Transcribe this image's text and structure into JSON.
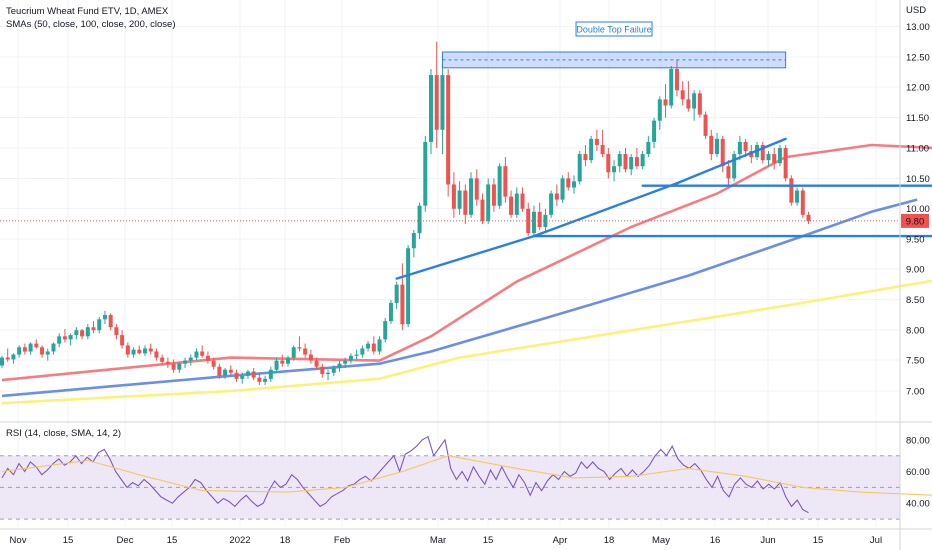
{
  "header": {
    "symbol_line": "Teucrium Wheat Fund ETV, 1D, AMEX",
    "sma_line": "SMAs (50, close, 100, close, 200, close)",
    "rsi_line": "RSI (14, close, SMA, 14, 2)"
  },
  "colors": {
    "up": "#26a69a",
    "down": "#ef5350",
    "sma50": "#f77c80",
    "sma100": "#6a8fe6",
    "sma200": "#fbf27a",
    "trendline": "#2a7fe0",
    "rsi_line": "#7e57c2",
    "rsi_signal": "#f6c85f",
    "rsi_band": "#ede7f6"
  },
  "chart_data": [
    {
      "type": "candlestick",
      "title": "Teucrium Wheat Fund ETV, 1D, AMEX",
      "y_unit": "USD",
      "ylim": [
        6.55,
        13.3
      ],
      "y_ticks": [
        "13.00",
        "12.50",
        "12.00",
        "11.50",
        "11.00",
        "10.50",
        "10.00",
        "9.50",
        "9.00",
        "8.50",
        "8.00",
        "7.50",
        "7.00"
      ],
      "x_ticks": [
        "Nov",
        "15",
        "Dec",
        "15",
        "2022",
        "18",
        "Feb",
        "Mar",
        "15",
        "Apr",
        "18",
        "May",
        "16",
        "Jun",
        "15",
        "Jul"
      ],
      "last_price": "9.80",
      "annotation": "Double Top Failure",
      "candles": [
        [
          7.42,
          7.58,
          7.38,
          7.55
        ],
        [
          7.55,
          7.7,
          7.48,
          7.52
        ],
        [
          7.52,
          7.62,
          7.45,
          7.6
        ],
        [
          7.6,
          7.75,
          7.55,
          7.72
        ],
        [
          7.72,
          7.78,
          7.6,
          7.65
        ],
        [
          7.65,
          7.8,
          7.6,
          7.78
        ],
        [
          7.78,
          7.85,
          7.7,
          7.72
        ],
        [
          7.72,
          7.75,
          7.55,
          7.6
        ],
        [
          7.6,
          7.7,
          7.5,
          7.65
        ],
        [
          7.65,
          7.8,
          7.6,
          7.78
        ],
        [
          7.78,
          7.95,
          7.72,
          7.9
        ],
        [
          7.9,
          8.02,
          7.8,
          7.85
        ],
        [
          7.85,
          7.95,
          7.75,
          7.92
        ],
        [
          7.92,
          8.05,
          7.85,
          8.0
        ],
        [
          8.0,
          8.02,
          7.85,
          7.9
        ],
        [
          7.9,
          8.1,
          7.85,
          8.05
        ],
        [
          8.05,
          8.15,
          7.95,
          8.0
        ],
        [
          8.0,
          8.22,
          7.95,
          8.18
        ],
        [
          8.18,
          8.32,
          8.1,
          8.25
        ],
        [
          8.25,
          8.28,
          8.0,
          8.05
        ],
        [
          8.05,
          8.1,
          7.85,
          7.92
        ],
        [
          7.92,
          8.0,
          7.7,
          7.75
        ],
        [
          7.75,
          7.8,
          7.55,
          7.6
        ],
        [
          7.6,
          7.72,
          7.55,
          7.68
        ],
        [
          7.68,
          7.75,
          7.6,
          7.62
        ],
        [
          7.62,
          7.75,
          7.58,
          7.7
        ],
        [
          7.7,
          7.78,
          7.6,
          7.65
        ],
        [
          7.65,
          7.7,
          7.5,
          7.55
        ],
        [
          7.55,
          7.6,
          7.42,
          7.48
        ],
        [
          7.48,
          7.55,
          7.38,
          7.45
        ],
        [
          7.45,
          7.52,
          7.3,
          7.35
        ],
        [
          7.35,
          7.48,
          7.3,
          7.45
        ],
        [
          7.45,
          7.55,
          7.38,
          7.5
        ],
        [
          7.5,
          7.6,
          7.42,
          7.55
        ],
        [
          7.55,
          7.7,
          7.5,
          7.65
        ],
        [
          7.65,
          7.75,
          7.55,
          7.58
        ],
        [
          7.58,
          7.65,
          7.45,
          7.5
        ],
        [
          7.5,
          7.55,
          7.35,
          7.4
        ],
        [
          7.4,
          7.45,
          7.2,
          7.25
        ],
        [
          7.25,
          7.38,
          7.2,
          7.35
        ],
        [
          7.35,
          7.42,
          7.25,
          7.3
        ],
        [
          7.3,
          7.35,
          7.15,
          7.2
        ],
        [
          7.2,
          7.3,
          7.12,
          7.25
        ],
        [
          7.25,
          7.35,
          7.2,
          7.32
        ],
        [
          7.32,
          7.38,
          7.18,
          7.22
        ],
        [
          7.22,
          7.3,
          7.1,
          7.15
        ],
        [
          7.15,
          7.25,
          7.1,
          7.2
        ],
        [
          7.2,
          7.4,
          7.15,
          7.35
        ],
        [
          7.35,
          7.55,
          7.3,
          7.5
        ],
        [
          7.5,
          7.6,
          7.4,
          7.45
        ],
        [
          7.45,
          7.58,
          7.4,
          7.55
        ],
        [
          7.55,
          7.75,
          7.5,
          7.72
        ],
        [
          7.72,
          7.9,
          7.65,
          7.7
        ],
        [
          7.7,
          7.78,
          7.55,
          7.6
        ],
        [
          7.6,
          7.68,
          7.45,
          7.5
        ],
        [
          7.5,
          7.55,
          7.35,
          7.4
        ],
        [
          7.4,
          7.45,
          7.22,
          7.28
        ],
        [
          7.28,
          7.35,
          7.18,
          7.3
        ],
        [
          7.3,
          7.42,
          7.25,
          7.38
        ],
        [
          7.38,
          7.5,
          7.32,
          7.45
        ],
        [
          7.45,
          7.55,
          7.38,
          7.5
        ],
        [
          7.5,
          7.62,
          7.45,
          7.58
        ],
        [
          7.58,
          7.68,
          7.5,
          7.6
        ],
        [
          7.6,
          7.75,
          7.55,
          7.7
        ],
        [
          7.7,
          7.82,
          7.65,
          7.78
        ],
        [
          7.78,
          7.9,
          7.6,
          7.65
        ],
        [
          7.65,
          7.9,
          7.6,
          7.85
        ],
        [
          7.85,
          8.2,
          7.8,
          8.15
        ],
        [
          8.15,
          8.5,
          8.1,
          8.45
        ],
        [
          8.45,
          8.8,
          8.35,
          8.75
        ],
        [
          8.75,
          9.1,
          8.0,
          8.1
        ],
        [
          8.1,
          9.4,
          8.05,
          9.35
        ],
        [
          9.35,
          9.65,
          9.2,
          9.6
        ],
        [
          9.6,
          10.1,
          9.5,
          10.05
        ],
        [
          10.05,
          11.2,
          9.95,
          11.1
        ],
        [
          11.1,
          12.3,
          10.9,
          12.2
        ],
        [
          12.2,
          12.75,
          11.0,
          11.3
        ],
        [
          11.3,
          12.4,
          10.9,
          12.2
        ],
        [
          12.2,
          12.3,
          10.2,
          10.4
        ],
        [
          10.4,
          10.6,
          9.85,
          10.0
        ],
        [
          10.0,
          10.45,
          9.9,
          10.3
        ],
        [
          10.3,
          10.4,
          9.75,
          9.9
        ],
        [
          9.9,
          10.6,
          9.85,
          10.5
        ],
        [
          10.5,
          10.65,
          10.05,
          10.15
        ],
        [
          10.15,
          10.25,
          9.75,
          9.8
        ],
        [
          9.8,
          10.5,
          9.75,
          10.4
        ],
        [
          10.4,
          10.5,
          9.95,
          10.05
        ],
        [
          10.05,
          10.75,
          10.0,
          10.7
        ],
        [
          10.7,
          10.85,
          10.1,
          10.2
        ],
        [
          10.2,
          10.3,
          9.85,
          9.9
        ],
        [
          9.9,
          10.35,
          9.85,
          10.25
        ],
        [
          10.25,
          10.35,
          9.95,
          10.0
        ],
        [
          10.0,
          10.1,
          9.55,
          9.6
        ],
        [
          9.6,
          10.05,
          9.55,
          9.95
        ],
        [
          9.95,
          10.1,
          9.65,
          9.7
        ],
        [
          9.7,
          10.0,
          9.6,
          9.9
        ],
        [
          9.9,
          10.3,
          9.85,
          10.25
        ],
        [
          10.25,
          10.4,
          10.05,
          10.15
        ],
        [
          10.15,
          10.55,
          10.1,
          10.5
        ],
        [
          10.5,
          10.6,
          10.3,
          10.35
        ],
        [
          10.35,
          10.55,
          10.25,
          10.45
        ],
        [
          10.45,
          10.95,
          10.4,
          10.9
        ],
        [
          10.9,
          11.05,
          10.7,
          10.8
        ],
        [
          10.8,
          11.2,
          10.75,
          11.15
        ],
        [
          11.15,
          11.3,
          10.95,
          11.05
        ],
        [
          11.05,
          11.3,
          10.85,
          10.9
        ],
        [
          10.9,
          11.0,
          10.5,
          10.6
        ],
        [
          10.6,
          10.8,
          10.45,
          10.7
        ],
        [
          10.7,
          10.95,
          10.6,
          10.9
        ],
        [
          10.9,
          11.0,
          10.6,
          10.65
        ],
        [
          10.65,
          10.9,
          10.55,
          10.85
        ],
        [
          10.85,
          11.0,
          10.65,
          10.7
        ],
        [
          10.7,
          10.95,
          10.65,
          10.9
        ],
        [
          10.9,
          11.2,
          10.85,
          11.1
        ],
        [
          11.1,
          11.5,
          11.0,
          11.45
        ],
        [
          11.45,
          11.85,
          11.3,
          11.8
        ],
        [
          11.8,
          12.05,
          11.5,
          11.7
        ],
        [
          11.7,
          12.35,
          11.65,
          12.3
        ],
        [
          12.3,
          12.45,
          11.85,
          11.95
        ],
        [
          11.95,
          12.1,
          11.7,
          11.8
        ],
        [
          11.8,
          12.1,
          11.6,
          11.65
        ],
        [
          11.65,
          11.95,
          11.45,
          11.9
        ],
        [
          11.9,
          11.95,
          11.5,
          11.55
        ],
        [
          11.55,
          11.6,
          11.15,
          11.2
        ],
        [
          11.2,
          11.3,
          10.8,
          10.9
        ],
        [
          10.9,
          11.25,
          10.85,
          11.15
        ],
        [
          11.15,
          11.2,
          10.6,
          10.7
        ],
        [
          10.7,
          10.8,
          10.35,
          10.5
        ],
        [
          10.5,
          10.95,
          10.45,
          10.9
        ],
        [
          10.9,
          11.2,
          10.8,
          11.1
        ],
        [
          11.1,
          11.15,
          10.85,
          10.95
        ],
        [
          10.95,
          11.05,
          10.75,
          10.85
        ],
        [
          10.85,
          11.1,
          10.8,
          11.05
        ],
        [
          11.05,
          11.1,
          10.75,
          10.8
        ],
        [
          10.8,
          10.95,
          10.7,
          10.9
        ],
        [
          10.9,
          11.0,
          10.65,
          10.75
        ],
        [
          10.75,
          11.05,
          10.7,
          11.0
        ],
        [
          11.0,
          11.05,
          10.45,
          10.5
        ],
        [
          10.5,
          10.55,
          10.05,
          10.1
        ],
        [
          10.1,
          10.35,
          10.05,
          10.3
        ],
        [
          10.3,
          10.35,
          9.85,
          9.9
        ],
        [
          9.9,
          9.95,
          9.75,
          9.8
        ]
      ],
      "series": [
        {
          "name": "SMA 50",
          "values": [
            [
              0,
              7.18
            ],
            [
              40,
              7.55
            ],
            [
              66,
              7.5
            ],
            [
              75,
              7.9
            ],
            [
              90,
              8.8
            ],
            [
              110,
              9.7
            ],
            [
              125,
              10.25
            ],
            [
              137,
              10.85
            ],
            [
              152,
              11.05
            ],
            [
              163,
              11.0
            ]
          ]
        },
        {
          "name": "SMA 100",
          "values": [
            [
              0,
              6.92
            ],
            [
              40,
              7.25
            ],
            [
              66,
              7.45
            ],
            [
              75,
              7.65
            ],
            [
              95,
              8.2
            ],
            [
              120,
              8.9
            ],
            [
              140,
              9.55
            ],
            [
              152,
              9.95
            ],
            [
              160,
              10.15
            ]
          ]
        },
        {
          "name": "SMA 200",
          "values": [
            [
              0,
              6.8
            ],
            [
              40,
              7.0
            ],
            [
              66,
              7.2
            ],
            [
              80,
              7.55
            ],
            [
              110,
              8.0
            ],
            [
              140,
              8.45
            ],
            [
              163,
              8.82
            ]
          ]
        }
      ],
      "trendlines": [
        {
          "from": [
            69,
            8.85
          ],
          "to": [
            93,
            9.55
          ]
        },
        {
          "from": [
            93,
            9.55
          ],
          "to": [
            118,
            10.42
          ]
        },
        {
          "from": [
            118,
            10.42
          ],
          "to": [
            137,
            11.15
          ]
        },
        {
          "from": [
            93,
            9.55
          ],
          "to": [
            168,
            9.55
          ]
        },
        {
          "from": [
            112,
            10.38
          ],
          "to": [
            175,
            10.38
          ]
        }
      ],
      "resistance_zone": {
        "from": [
          77,
          12.58
        ],
        "to": [
          137,
          12.32
        ]
      }
    },
    {
      "type": "line",
      "title": "RSI (14, close, SMA, 14, 2)",
      "ylim": [
        25,
        90
      ],
      "y_ticks": [
        "80.00",
        "60.00",
        "40.00"
      ],
      "bands": [
        30,
        50,
        70
      ],
      "series": [
        {
          "name": "RSI",
          "values": [
            56,
            62,
            58,
            65,
            60,
            66,
            63,
            58,
            61,
            65,
            68,
            64,
            66,
            70,
            65,
            69,
            66,
            72,
            74,
            68,
            60,
            55,
            50,
            53,
            51,
            55,
            52,
            48,
            44,
            42,
            40,
            44,
            47,
            50,
            55,
            53,
            48,
            44,
            40,
            43,
            41,
            38,
            42,
            45,
            41,
            38,
            40,
            48,
            54,
            50,
            52,
            58,
            55,
            50,
            46,
            42,
            38,
            40,
            44,
            46,
            48,
            51,
            52,
            55,
            57,
            54,
            58,
            62,
            66,
            70,
            60,
            71,
            73,
            76,
            80,
            82,
            70,
            75,
            80,
            62,
            55,
            60,
            54,
            63,
            57,
            52,
            61,
            55,
            63,
            56,
            50,
            58,
            53,
            45,
            53,
            48,
            54,
            58,
            55,
            60,
            57,
            59,
            66,
            62,
            66,
            62,
            60,
            55,
            59,
            62,
            57,
            61,
            57,
            60,
            64,
            70,
            74,
            70,
            76,
            68,
            64,
            62,
            65,
            61,
            55,
            50,
            57,
            48,
            44,
            52,
            56,
            52,
            50,
            54,
            49,
            52,
            49,
            53,
            44,
            38,
            42,
            36,
            34
          ]
        },
        {
          "name": "SMA",
          "values": [
            [
              0,
              60
            ],
            [
              15,
              67
            ],
            [
              25,
              57
            ],
            [
              35,
              48
            ],
            [
              50,
              47
            ],
            [
              60,
              50
            ],
            [
              70,
              60
            ],
            [
              78,
              70
            ],
            [
              90,
              62
            ],
            [
              100,
              56
            ],
            [
              110,
              57
            ],
            [
              120,
              62
            ],
            [
              130,
              57
            ],
            [
              140,
              50
            ],
            [
              150,
              47
            ],
            [
              163,
              45
            ]
          ]
        }
      ]
    }
  ]
}
